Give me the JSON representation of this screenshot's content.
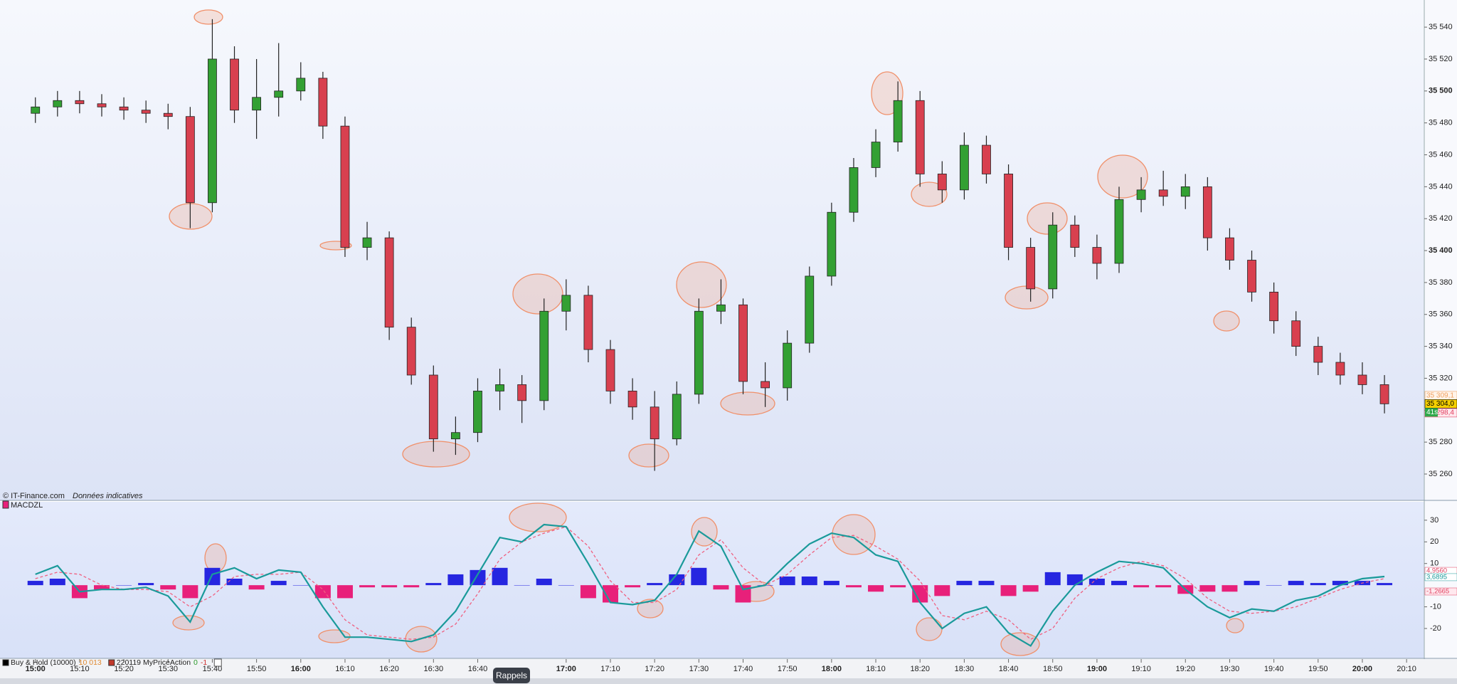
{
  "chart_data": [
    {
      "type": "candlestick",
      "source": "© IT-Finance.com",
      "source_note": "Données indicatives",
      "up_color": "#33a033",
      "down_color": "#d8404f",
      "xlim": [
        892,
        1214
      ],
      "ylim": [
        35243.5,
        35557
      ],
      "x": [
        900,
        905,
        910,
        915,
        920,
        925,
        930,
        935,
        940,
        945,
        950,
        955,
        960,
        965,
        970,
        975,
        980,
        985,
        990,
        995,
        1000,
        1005,
        1010,
        1015,
        1020,
        1025,
        1030,
        1035,
        1040,
        1045,
        1050,
        1055,
        1060,
        1065,
        1070,
        1075,
        1080,
        1085,
        1090,
        1095,
        1100,
        1105,
        1110,
        1115,
        1120,
        1125,
        1130,
        1135,
        1140,
        1145,
        1150,
        1155,
        1160,
        1165,
        1170,
        1175,
        1180,
        1185,
        1190,
        1195,
        1200,
        1205
      ],
      "open": [
        35486,
        35490,
        35494,
        35492,
        35490,
        35488,
        35486,
        35484,
        35430,
        35520,
        35488,
        35496,
        35500,
        35508,
        35478,
        35402,
        35408,
        35352,
        35322,
        35282,
        35286,
        35312,
        35316,
        35306,
        35362,
        35372,
        35338,
        35312,
        35302,
        35282,
        35310,
        35362,
        35366,
        35318,
        35314,
        35342,
        35384,
        35424,
        35452,
        35468,
        35494,
        35448,
        35438,
        35466,
        35448,
        35402,
        35376,
        35416,
        35402,
        35392,
        35432,
        35438,
        35434,
        35440,
        35408,
        35394,
        35374,
        35356,
        35340,
        35330,
        35322,
        35316
      ],
      "high": [
        35496,
        35500,
        35500,
        35498,
        35496,
        35494,
        35492,
        35490,
        35545,
        35528,
        35520,
        35530,
        35518,
        35512,
        35484,
        35418,
        35412,
        35358,
        35328,
        35296,
        35320,
        35326,
        35322,
        35370,
        35382,
        35378,
        35344,
        35320,
        35312,
        35318,
        35370,
        35382,
        35370,
        35330,
        35350,
        35390,
        35430,
        35458,
        35476,
        35506,
        35500,
        35456,
        35474,
        35472,
        35454,
        35408,
        35424,
        35422,
        35410,
        35440,
        35446,
        35450,
        35448,
        35446,
        35414,
        35400,
        35380,
        35362,
        35346,
        35336,
        35330,
        35322
      ],
      "low": [
        35480,
        35484,
        35486,
        35484,
        35482,
        35480,
        35476,
        35414,
        35424,
        35480,
        35470,
        35484,
        35494,
        35470,
        35396,
        35394,
        35344,
        35316,
        35274,
        35272,
        35280,
        35300,
        35292,
        35300,
        35350,
        35330,
        35304,
        35294,
        35262,
        35278,
        35304,
        35354,
        35310,
        35302,
        35306,
        35336,
        35378,
        35418,
        35446,
        35462,
        35440,
        35430,
        35432,
        35442,
        35394,
        35368,
        35370,
        35396,
        35382,
        35386,
        35424,
        35428,
        35426,
        35400,
        35388,
        35368,
        35348,
        35334,
        35322,
        35316,
        35310,
        35298
      ],
      "close": [
        35490,
        35494,
        35492,
        35490,
        35488,
        35486,
        35484,
        35430,
        35520,
        35488,
        35496,
        35500,
        35508,
        35478,
        35402,
        35408,
        35352,
        35322,
        35282,
        35286,
        35312,
        35316,
        35306,
        35362,
        35372,
        35338,
        35312,
        35302,
        35282,
        35310,
        35362,
        35366,
        35318,
        35314,
        35342,
        35384,
        35424,
        35452,
        35468,
        35494,
        35448,
        35438,
        35466,
        35448,
        35402,
        35376,
        35416,
        35402,
        35392,
        35432,
        35438,
        35434,
        35440,
        35408,
        35394,
        35374,
        35356,
        35340,
        35330,
        35322,
        35316,
        35304
      ],
      "yticks": [
        {
          "value": 35260,
          "label": "35 260"
        },
        {
          "value": 35280,
          "label": "35 280"
        },
        {
          "value": 35300,
          "label": "35 300"
        },
        {
          "value": 35320,
          "label": "35 320"
        },
        {
          "value": 35340,
          "label": "35 340"
        },
        {
          "value": 35360,
          "label": "35 360"
        },
        {
          "value": 35380,
          "label": "35 380"
        },
        {
          "value": 35400,
          "label": "35 400"
        },
        {
          "value": 35420,
          "label": "35 420"
        },
        {
          "value": 35440,
          "label": "35 440"
        },
        {
          "value": 35460,
          "label": "35 460"
        },
        {
          "value": 35480,
          "label": "35 480"
        },
        {
          "value": 35500,
          "label": "35 500"
        },
        {
          "value": 35520,
          "label": "35 520"
        },
        {
          "value": 35540,
          "label": "35 540"
        }
      ],
      "xticks": [
        {
          "value": 900,
          "label": "15:00"
        },
        {
          "value": 910,
          "label": "15:10"
        },
        {
          "value": 920,
          "label": "15:20"
        },
        {
          "value": 930,
          "label": "15:30"
        },
        {
          "value": 940,
          "label": "15:40"
        },
        {
          "value": 950,
          "label": "15:50"
        },
        {
          "value": 960,
          "label": "16:00"
        },
        {
          "value": 970,
          "label": "16:10"
        },
        {
          "value": 980,
          "label": "16:20"
        },
        {
          "value": 990,
          "label": "16:30"
        },
        {
          "value": 1000,
          "label": "16:40"
        },
        {
          "value": 1020,
          "label": "17:00"
        },
        {
          "value": 1030,
          "label": "17:10"
        },
        {
          "value": 1040,
          "label": "17:20"
        },
        {
          "value": 1050,
          "label": "17:30"
        },
        {
          "value": 1060,
          "label": "17:40"
        },
        {
          "value": 1070,
          "label": "17:50"
        },
        {
          "value": 1080,
          "label": "18:00"
        },
        {
          "value": 1090,
          "label": "18:10"
        },
        {
          "value": 1100,
          "label": "18:20"
        },
        {
          "value": 1110,
          "label": "18:30"
        },
        {
          "value": 1120,
          "label": "18:40"
        },
        {
          "value": 1130,
          "label": "18:50"
        },
        {
          "value": 1140,
          "label": "19:00"
        },
        {
          "value": 1150,
          "label": "19:10"
        },
        {
          "value": 1160,
          "label": "19:20"
        },
        {
          "value": 1170,
          "label": "19:30"
        },
        {
          "value": 1180,
          "label": "19:40"
        },
        {
          "value": 1190,
          "label": "19:50"
        },
        {
          "value": 1200,
          "label": "20:00"
        },
        {
          "value": 1210,
          "label": "20:10"
        }
      ],
      "price_labels": [
        {
          "value": 35309.1,
          "label": "35 309,1",
          "color": "#f0a060",
          "bg": "#fff4ea"
        },
        {
          "value": 35304.0,
          "label": "35 304,0",
          "color": "#000000",
          "bg": "#f5d000"
        },
        {
          "value": 35298.4,
          "label": "35 298,4",
          "color": "#e04060",
          "bg": "#ffe8ee"
        }
      ],
      "timer": "41s"
    },
    {
      "type": "macd",
      "title": "MACDZL",
      "xlim": [
        892,
        1214
      ],
      "ylim": [
        -33.8,
        38.5
      ],
      "yticks": [
        30,
        20,
        10,
        -10,
        -20
      ],
      "x": [
        900,
        905,
        910,
        915,
        920,
        925,
        930,
        935,
        940,
        945,
        950,
        955,
        960,
        965,
        970,
        975,
        980,
        985,
        990,
        995,
        1000,
        1005,
        1010,
        1015,
        1020,
        1025,
        1030,
        1035,
        1040,
        1045,
        1050,
        1055,
        1060,
        1065,
        1070,
        1075,
        1080,
        1085,
        1090,
        1095,
        1100,
        1105,
        1110,
        1115,
        1120,
        1125,
        1130,
        1135,
        1140,
        1145,
        1150,
        1155,
        1160,
        1165,
        1170,
        1175,
        1180,
        1185,
        1190,
        1195,
        1200,
        1205
      ],
      "histogram": {
        "up_color": "#2626e0",
        "down_color": "#e8207a",
        "values": [
          2,
          3,
          -6,
          -2,
          0,
          1,
          -2,
          -6,
          8,
          3,
          -2,
          2,
          0,
          -6,
          -6,
          -1,
          -1,
          -1,
          1,
          5,
          7,
          8,
          0,
          3,
          0,
          -6,
          -8,
          -1,
          1,
          5,
          8,
          -2,
          -8,
          0,
          4,
          4,
          2,
          -1,
          -3,
          -1,
          -8,
          -5,
          2,
          2,
          -5,
          -3,
          6,
          5,
          3,
          2,
          -1,
          -1,
          -4,
          -3,
          -3,
          2,
          0,
          2,
          1,
          2,
          2,
          1
        ]
      },
      "lines": [
        {
          "color": "#1a9a9a",
          "style": "solid",
          "values": [
            5,
            9,
            -3,
            -2,
            -2,
            -1,
            -5,
            -17,
            5,
            8,
            3,
            7,
            6,
            -10,
            -24,
            -24,
            -25,
            -26,
            -23,
            -12,
            5,
            22,
            20,
            28,
            27,
            10,
            -8,
            -9,
            -7,
            5,
            25,
            18,
            -2,
            0,
            10,
            19,
            24,
            22,
            14,
            11,
            -8,
            -20,
            -13,
            -10,
            -22,
            -28,
            -12,
            0,
            6,
            11,
            10,
            8,
            -2,
            -10,
            -15,
            -11,
            -12,
            -7,
            -5,
            0,
            3,
            4
          ]
        },
        {
          "color": "#f06080",
          "style": "dashed",
          "values": [
            3,
            6,
            5,
            0,
            -2,
            -2,
            -3,
            -10,
            -5,
            4,
            5,
            5,
            6,
            -2,
            -16,
            -23,
            -24,
            -25,
            -24,
            -18,
            -4,
            12,
            20,
            24,
            27,
            18,
            2,
            -8,
            -8,
            -2,
            14,
            21,
            8,
            0,
            5,
            14,
            22,
            23,
            18,
            12,
            2,
            -14,
            -16,
            -12,
            -16,
            -25,
            -20,
            -6,
            3,
            8,
            11,
            9,
            3,
            -6,
            -12,
            -13,
            -12,
            -10,
            -6,
            -2,
            1,
            3
          ]
        }
      ],
      "price_labels": [
        {
          "value": 4.956,
          "label": "4,9560",
          "color": "#e04060",
          "bg": "#ffffff"
        },
        {
          "value": 3.6895,
          "label": "3,6895",
          "color": "#1a9a9a",
          "bg": "#ffffff"
        },
        {
          "value": -1.2665,
          "label": "-1,2665",
          "color": "#e04060",
          "bg": "#ffe8ee"
        }
      ]
    }
  ],
  "legend": [
    {
      "name": "Buy & Hold (10000)",
      "value": "10 013",
      "color": "#000000",
      "value_color": "#e08a30"
    },
    {
      "name": "220119 MyPriceAction",
      "value": "0",
      "delta": "-1",
      "color": "#c0392b",
      "value_color": "#2a9a2a"
    }
  ],
  "tooltip": "Rappels"
}
